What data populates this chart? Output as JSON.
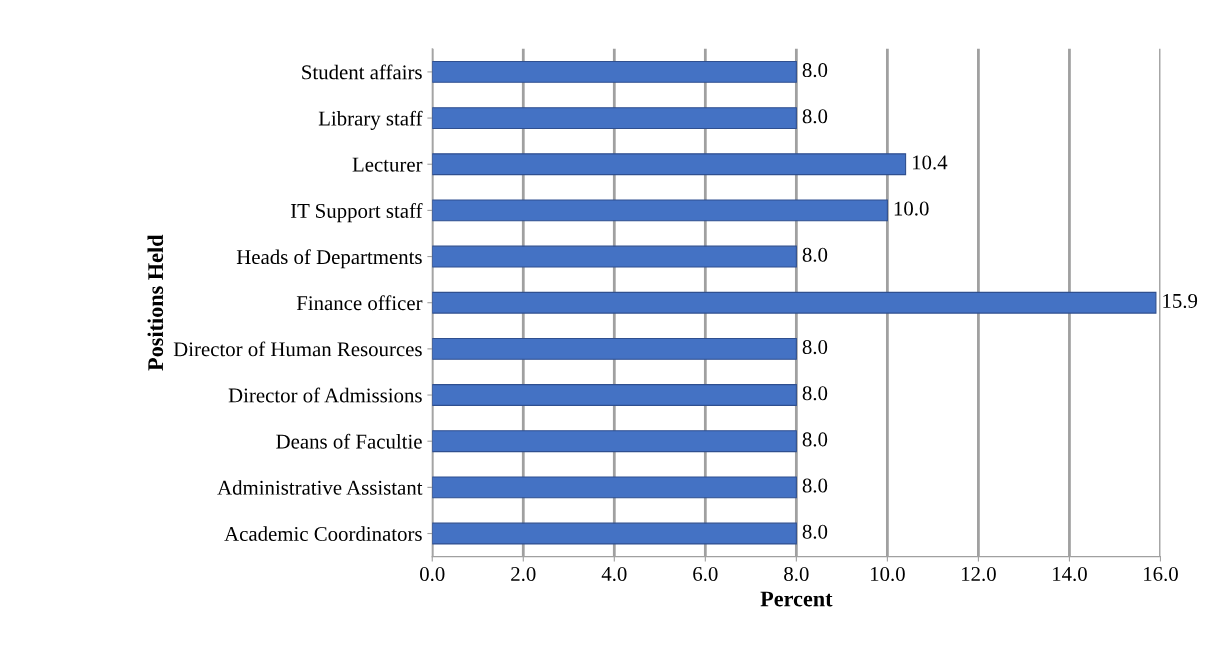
{
  "chart_data": {
    "type": "bar",
    "orientation": "horizontal",
    "xlabel": "Percent",
    "ylabel": "Positions Held",
    "categories": [
      "Student affairs",
      "Library staff",
      "Lecturer",
      "IT Support staff",
      "Heads of Departments",
      "Finance officer",
      "Director of Human Resources",
      "Director of Admissions",
      "Deans of Facultie",
      "Administrative Assistant",
      "Academic Coordinators"
    ],
    "values": [
      8.0,
      8.0,
      10.4,
      10.0,
      8.0,
      15.9,
      8.0,
      8.0,
      8.0,
      8.0,
      8.0
    ],
    "value_labels": [
      "8.0",
      "8.0",
      "10.4",
      "10.0",
      "8.0",
      "15.9",
      "8.0",
      "8.0",
      "8.0",
      "8.0",
      "8.0"
    ],
    "color": "#4472c4",
    "xlim": [
      0,
      16
    ],
    "xticks": [
      {
        "value": 0,
        "label": "0.0"
      },
      {
        "value": 2,
        "label": "2.0"
      },
      {
        "value": 4,
        "label": "4.0"
      },
      {
        "value": 6,
        "label": "6.0"
      },
      {
        "value": 8,
        "label": "8.0"
      },
      {
        "value": 10,
        "label": "10.0"
      },
      {
        "value": 12,
        "label": "12.0"
      },
      {
        "value": 14,
        "label": "14.0"
      },
      {
        "value": 16,
        "label": "16.0"
      }
    ],
    "grid": "x",
    "legend": false
  }
}
